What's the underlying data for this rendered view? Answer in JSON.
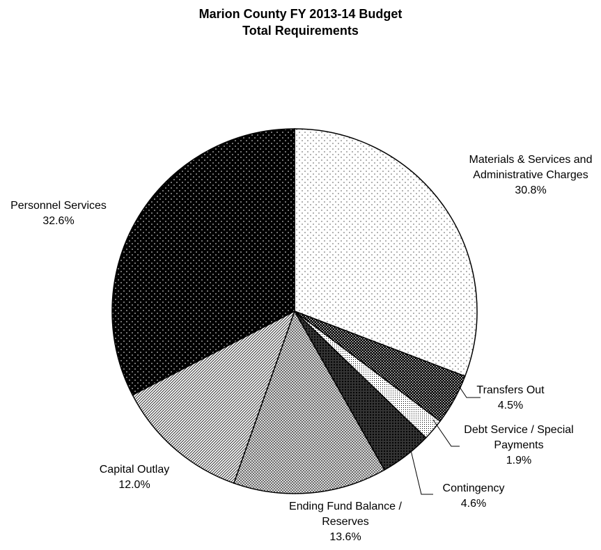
{
  "chart_data": {
    "type": "pie",
    "title": "Marion County FY 2013-14 Budget",
    "subtitle": "Total Requirements",
    "slices": [
      {
        "label_lines": [
          "Materials & Services and",
          "Administrative Charges"
        ],
        "value_label": "30.8%",
        "value": 30.8,
        "pattern": "fine-dots-light"
      },
      {
        "label_lines": [
          "Transfers Out"
        ],
        "value_label": "4.5%",
        "value": 4.5,
        "pattern": "dark-checker"
      },
      {
        "label_lines": [
          "Debt Service / Special",
          "Payments"
        ],
        "value_label": "1.9%",
        "value": 1.9,
        "pattern": "dense-dots"
      },
      {
        "label_lines": [
          "Contingency"
        ],
        "value_label": "4.6%",
        "value": 4.6,
        "pattern": "dark-crosshatch"
      },
      {
        "label_lines": [
          "Ending Fund Balance /",
          "Reserves"
        ],
        "value_label": "13.6%",
        "value": 13.6,
        "pattern": "crosshatch"
      },
      {
        "label_lines": [
          "Capital Outlay"
        ],
        "value_label": "12.0%",
        "value": 12.0,
        "pattern": "diagonal-stripes"
      },
      {
        "label_lines": [
          "Personnel Services"
        ],
        "value_label": "32.6%",
        "value": 32.6,
        "pattern": "black-dots"
      }
    ],
    "legend": "none",
    "start_angle": "12 o'clock, clockwise"
  }
}
